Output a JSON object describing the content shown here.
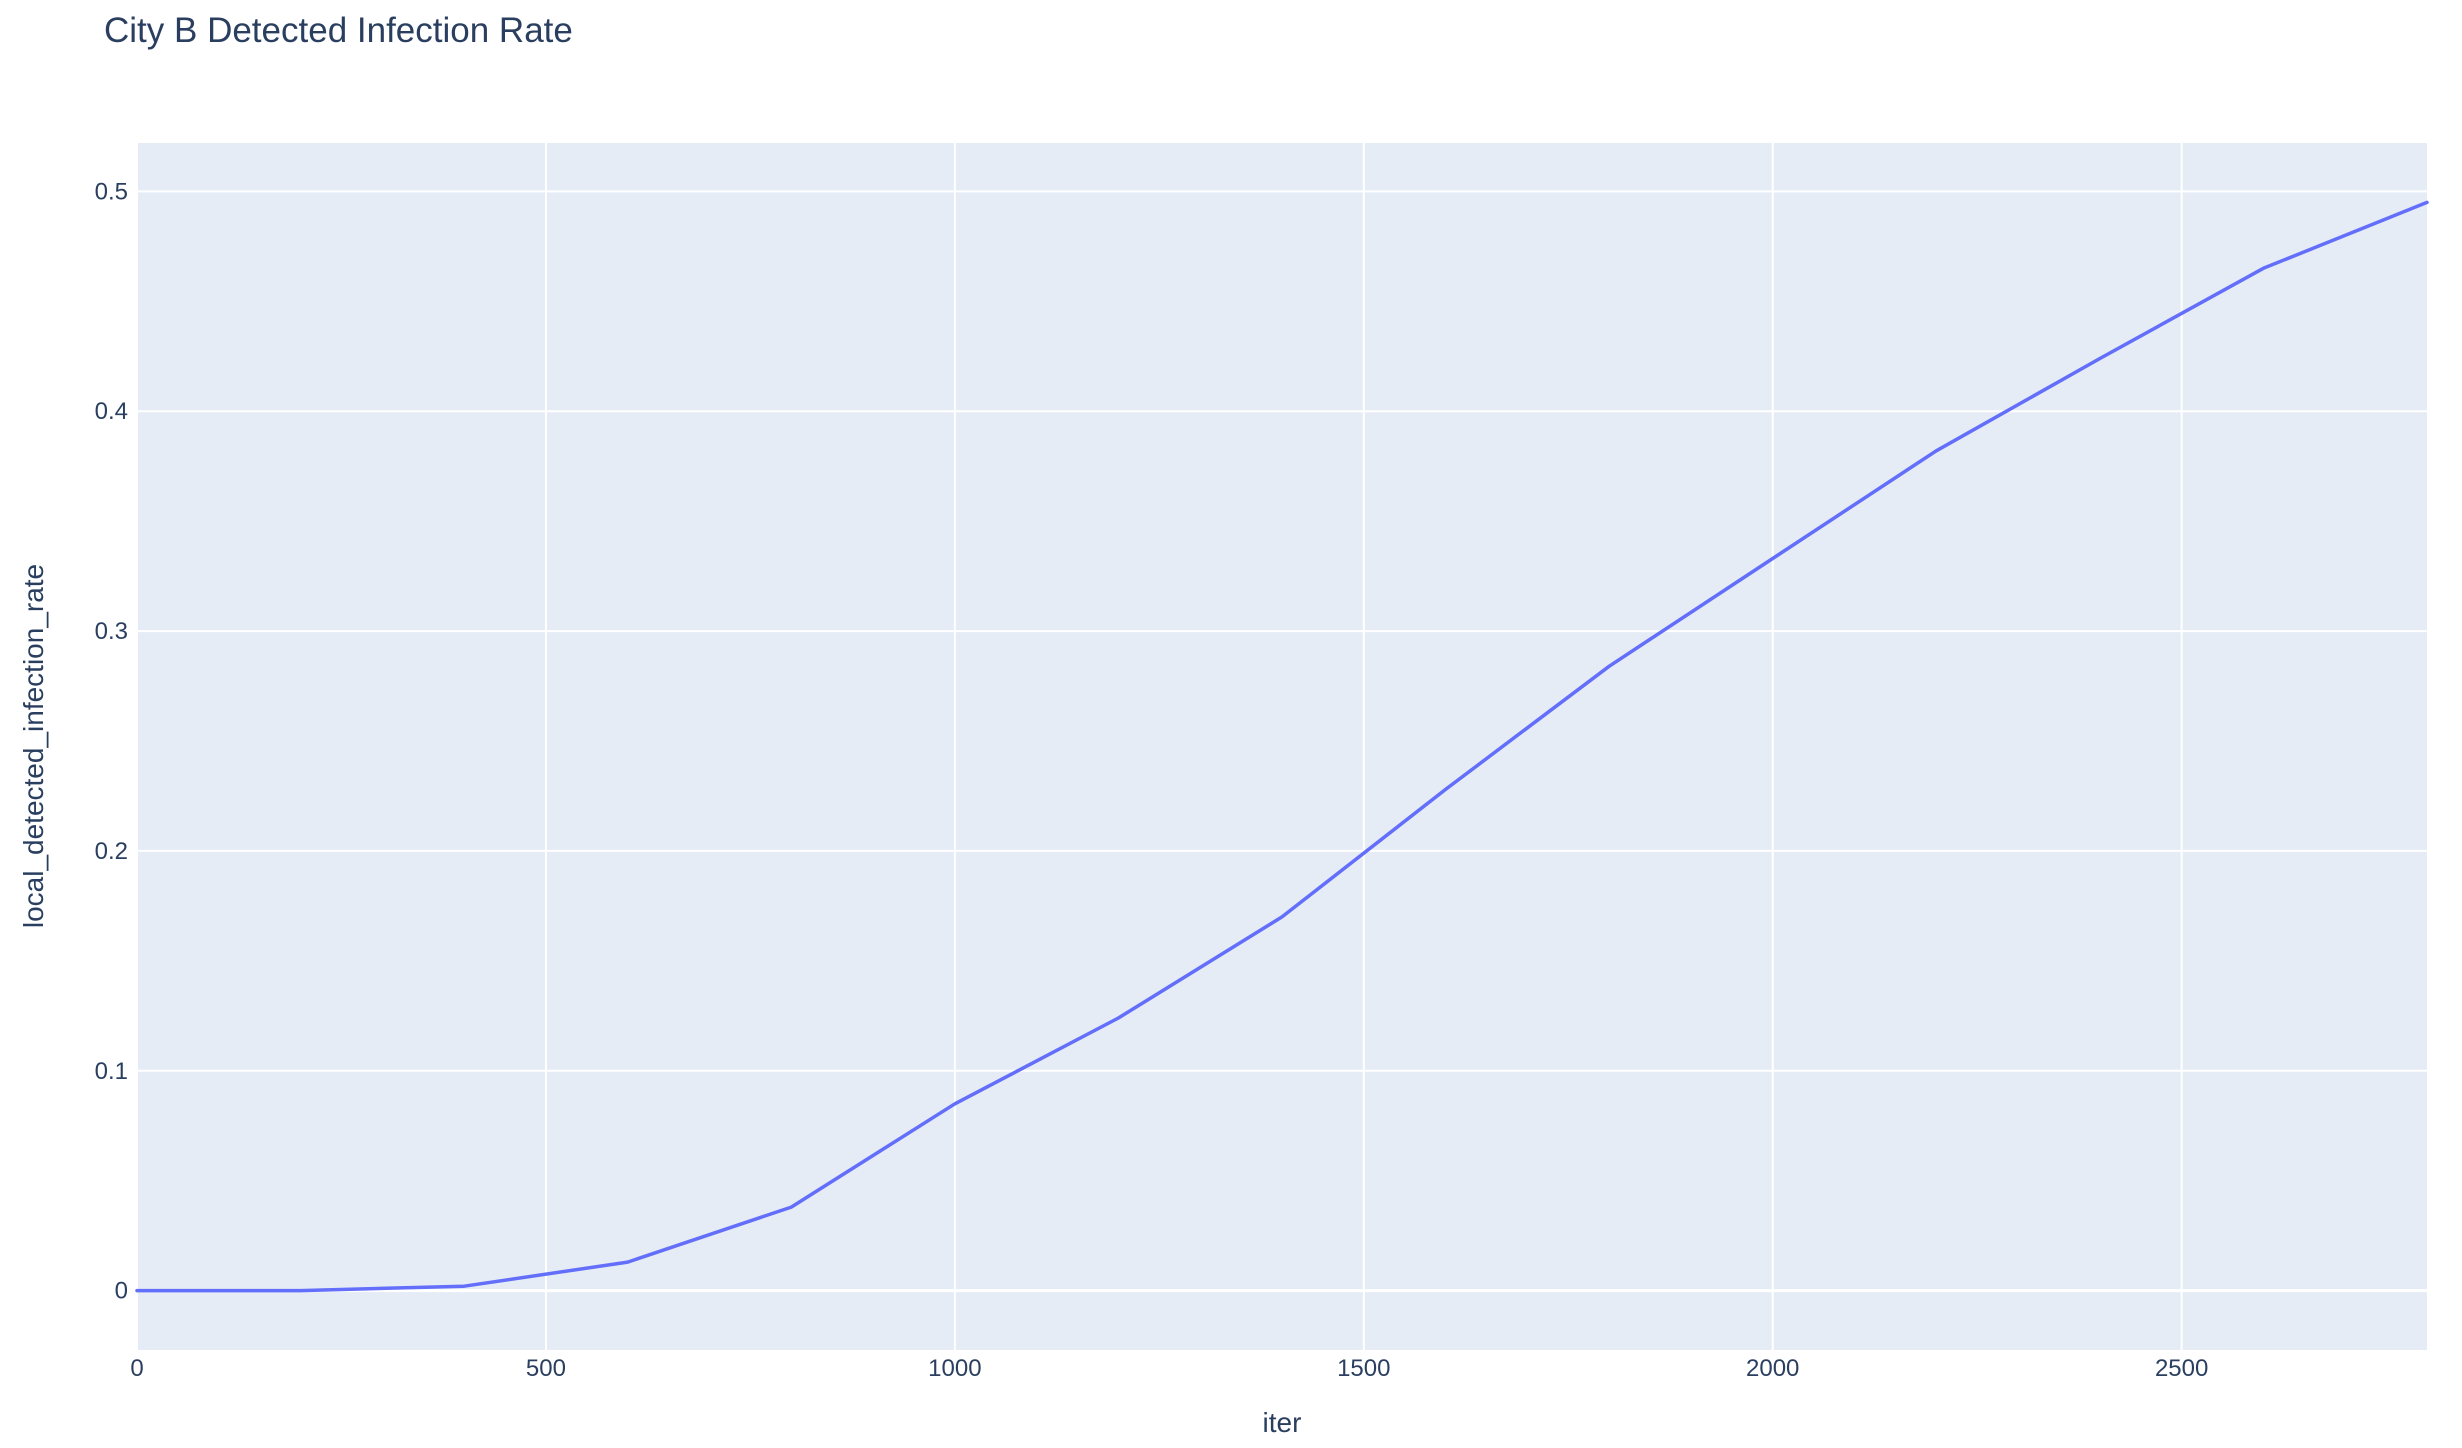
{
  "chart_data": {
    "type": "line",
    "title": "City B Detected Infection Rate",
    "xlabel": "iter",
    "ylabel": "local_detected_infection_rate",
    "xlim": [
      0,
      2800
    ],
    "ylim": [
      -0.027,
      0.522
    ],
    "x_ticks": [
      0,
      500,
      1000,
      1500,
      2000,
      2500
    ],
    "x_tick_labels": [
      "0",
      "500",
      "1000",
      "1500",
      "2000",
      "2500"
    ],
    "y_ticks": [
      0,
      0.1,
      0.2,
      0.3,
      0.4,
      0.5
    ],
    "y_tick_labels": [
      "0",
      "0.1",
      "0.2",
      "0.3",
      "0.4",
      "0.5"
    ],
    "grid": true,
    "legend": "none",
    "colors": {
      "plot_bg": "#e5ecf6",
      "grid": "#ffffff",
      "line": "#636efa",
      "text": "#2a3f5f"
    },
    "series": [
      {
        "x": [
          0,
          200,
          400,
          600,
          800,
          1000,
          1200,
          1400,
          1600,
          1800,
          2000,
          2200,
          2400,
          2600,
          2800
        ],
        "y": [
          0,
          0,
          0.002,
          0.013,
          0.038,
          0.085,
          0.124,
          0.17,
          0.228,
          0.284,
          0.333,
          0.382,
          0.424,
          0.465,
          0.495
        ]
      }
    ]
  }
}
